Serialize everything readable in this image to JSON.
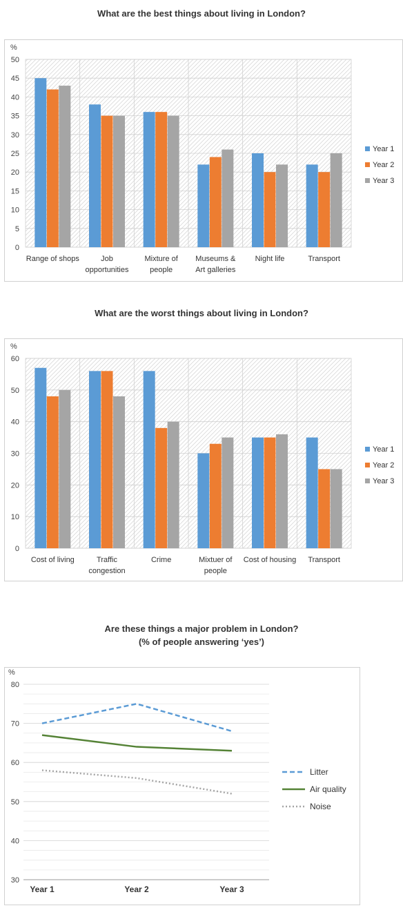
{
  "chart_data": [
    {
      "type": "bar",
      "title": "What are the best things about living in London?",
      "ylabel": "%",
      "ylim": [
        0,
        50
      ],
      "yticks": [
        "0",
        "5",
        "10",
        "15",
        "20",
        "25",
        "30",
        "35",
        "40",
        "45",
        "50"
      ],
      "categories": [
        [
          "Range of shops"
        ],
        [
          "Job",
          "opportunities"
        ],
        [
          "Mixture of",
          "people"
        ],
        [
          "Museums &",
          "Art galleries"
        ],
        [
          "Night life"
        ],
        [
          "Transport"
        ]
      ],
      "series": [
        {
          "name": "Year 1",
          "color": "#5b9bd5",
          "values": [
            45,
            38,
            36,
            22,
            25,
            22
          ]
        },
        {
          "name": "Year 2",
          "color": "#ed7d31",
          "values": [
            42,
            35,
            36,
            24,
            20,
            20
          ]
        },
        {
          "name": "Year 3",
          "color": "#a5a5a5",
          "values": [
            43,
            35,
            35,
            26,
            22,
            25
          ]
        }
      ],
      "legend": "right",
      "grid": true
    },
    {
      "type": "bar",
      "title": "What are the worst things about living in London?",
      "ylabel": "%",
      "ylim": [
        0,
        60
      ],
      "yticks": [
        "0",
        "10",
        "20",
        "30",
        "40",
        "50",
        "60"
      ],
      "categories": [
        [
          "Cost of living"
        ],
        [
          "Traffic",
          "congestion"
        ],
        [
          "Crime"
        ],
        [
          "Mixtuer of",
          "people"
        ],
        [
          "Cost of housing"
        ],
        [
          "Transport"
        ]
      ],
      "series": [
        {
          "name": "Year 1",
          "color": "#5b9bd5",
          "values": [
            57,
            56,
            56,
            30,
            35,
            35
          ]
        },
        {
          "name": "Year 2",
          "color": "#ed7d31",
          "values": [
            48,
            56,
            38,
            33,
            35,
            25
          ]
        },
        {
          "name": "Year 3",
          "color": "#a5a5a5",
          "values": [
            50,
            48,
            40,
            35,
            36,
            25
          ]
        }
      ],
      "legend": "right",
      "grid": true
    },
    {
      "type": "line",
      "title": "Are these things a major problem in London?",
      "subtitle": "(% of people answering ‘yes’)",
      "ylabel": "%",
      "ylim": [
        30,
        80
      ],
      "yticks": [
        "30",
        "40",
        "50",
        "60",
        "70",
        "80"
      ],
      "categories": [
        "Year 1",
        "Year 2",
        "Year 3"
      ],
      "series": [
        {
          "name": "Litter",
          "color": "#5b9bd5",
          "style": "dashed",
          "values": [
            70,
            75,
            68
          ]
        },
        {
          "name": "Air quality",
          "color": "#548235",
          "style": "solid",
          "values": [
            67,
            64,
            63
          ]
        },
        {
          "name": "Noise",
          "color": "#a5a5a5",
          "style": "dotted",
          "values": [
            58,
            56,
            52
          ]
        }
      ],
      "legend": "right",
      "grid": true
    }
  ]
}
